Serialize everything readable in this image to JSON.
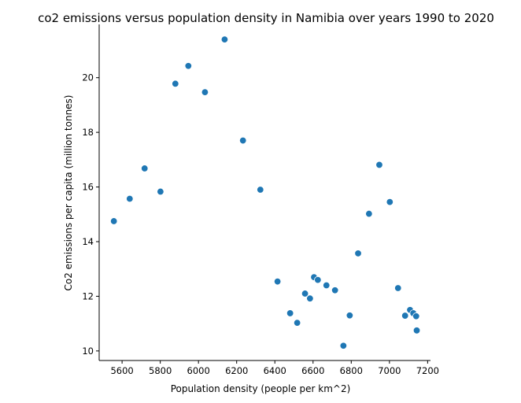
{
  "chart_data": {
    "type": "scatter",
    "title": "co2 emissions versus population density in Namibia over years 1990 to 2020",
    "xlabel": "Population density (people per km^2)",
    "ylabel": "Co2 emissions per capita (million tonnes)",
    "xlim": [
      5480,
      7215
    ],
    "ylim": [
      9.65,
      21.95
    ],
    "xticks": [
      5600,
      5800,
      6000,
      6200,
      6400,
      6600,
      6800,
      7000,
      7200
    ],
    "yticks": [
      10,
      12,
      14,
      16,
      18,
      20
    ],
    "grid": false,
    "color": "#1f77b4",
    "points": [
      {
        "x": 5557,
        "y": 14.75
      },
      {
        "x": 5640,
        "y": 15.57
      },
      {
        "x": 5718,
        "y": 16.68
      },
      {
        "x": 5801,
        "y": 15.83
      },
      {
        "x": 5879,
        "y": 19.78
      },
      {
        "x": 5947,
        "y": 20.43
      },
      {
        "x": 6034,
        "y": 19.47
      },
      {
        "x": 6137,
        "y": 21.4
      },
      {
        "x": 6233,
        "y": 17.7
      },
      {
        "x": 6324,
        "y": 15.9
      },
      {
        "x": 6414,
        "y": 12.54
      },
      {
        "x": 6480,
        "y": 11.38
      },
      {
        "x": 6517,
        "y": 11.03
      },
      {
        "x": 6558,
        "y": 12.1
      },
      {
        "x": 6584,
        "y": 11.92
      },
      {
        "x": 6605,
        "y": 12.7
      },
      {
        "x": 6625,
        "y": 12.6
      },
      {
        "x": 6670,
        "y": 12.4
      },
      {
        "x": 6715,
        "y": 12.22
      },
      {
        "x": 6759,
        "y": 10.19
      },
      {
        "x": 6792,
        "y": 11.3
      },
      {
        "x": 6836,
        "y": 13.57
      },
      {
        "x": 6893,
        "y": 15.02
      },
      {
        "x": 6947,
        "y": 16.81
      },
      {
        "x": 7002,
        "y": 15.45
      },
      {
        "x": 7045,
        "y": 12.3
      },
      {
        "x": 7082,
        "y": 11.29
      },
      {
        "x": 7108,
        "y": 11.5
      },
      {
        "x": 7125,
        "y": 11.38
      },
      {
        "x": 7140,
        "y": 11.27
      },
      {
        "x": 7143,
        "y": 10.75
      }
    ]
  }
}
